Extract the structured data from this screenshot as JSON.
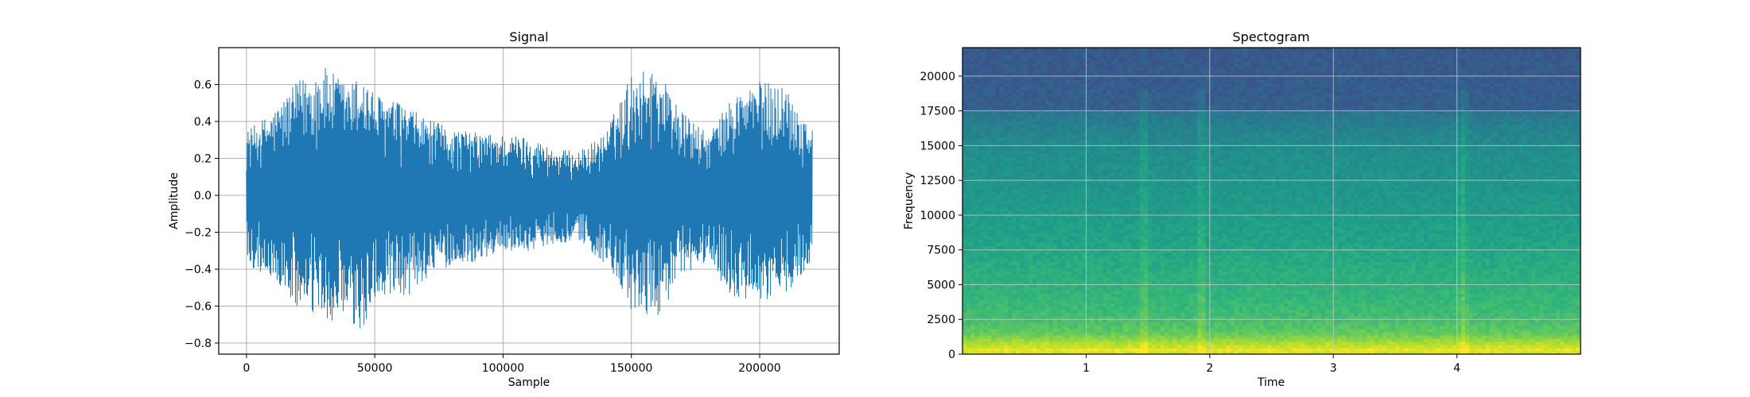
{
  "chart_data": [
    {
      "type": "line",
      "title": "Signal",
      "xlabel": "Sample",
      "ylabel": "Amplitude",
      "xlim": [
        -10800,
        231000
      ],
      "ylim": [
        -0.86,
        0.8
      ],
      "grid": true,
      "series_color": "#1f77b4",
      "xticks": [
        {
          "value": 0,
          "label": "0"
        },
        {
          "value": 50000,
          "label": "50000"
        },
        {
          "value": 100000,
          "label": "100000"
        },
        {
          "value": 150000,
          "label": "150000"
        },
        {
          "value": 200000,
          "label": "200000"
        }
      ],
      "yticks": [
        {
          "value": -0.8,
          "label": "−0.8"
        },
        {
          "value": -0.6,
          "label": "−0.6"
        },
        {
          "value": -0.4,
          "label": "−0.4"
        },
        {
          "value": -0.2,
          "label": "−0.2"
        },
        {
          "value": 0.0,
          "label": "0.0"
        },
        {
          "value": 0.2,
          "label": "0.2"
        },
        {
          "value": 0.4,
          "label": "0.4"
        },
        {
          "value": 0.6,
          "label": "0.6"
        }
      ],
      "samples": 220500,
      "envelope": {
        "x": [
          0,
          10000,
          20000,
          30000,
          40000,
          45000,
          50000,
          60000,
          70000,
          80000,
          90000,
          100000,
          110000,
          120000,
          130000,
          140000,
          150000,
          160000,
          170000,
          180000,
          190000,
          200000,
          210000,
          220500
        ],
        "upper": [
          0.35,
          0.45,
          0.62,
          0.7,
          0.6,
          0.66,
          0.55,
          0.5,
          0.42,
          0.36,
          0.34,
          0.33,
          0.32,
          0.25,
          0.24,
          0.34,
          0.66,
          0.7,
          0.45,
          0.33,
          0.55,
          0.62,
          0.6,
          0.36
        ],
        "lower": [
          -0.38,
          -0.45,
          -0.62,
          -0.68,
          -0.7,
          -0.78,
          -0.55,
          -0.6,
          -0.45,
          -0.38,
          -0.36,
          -0.3,
          -0.3,
          -0.26,
          -0.25,
          -0.38,
          -0.64,
          -0.66,
          -0.45,
          -0.35,
          -0.58,
          -0.58,
          -0.54,
          -0.35
        ]
      }
    },
    {
      "type": "heatmap",
      "title": "Spectogram",
      "xlabel": "Time",
      "ylabel": "Frequency",
      "xlim": [
        0,
        5.0
      ],
      "ylim": [
        0,
        22050
      ],
      "grid": true,
      "colormap": "viridis",
      "xticks": [
        {
          "value": 1,
          "label": "1"
        },
        {
          "value": 2,
          "label": "2"
        },
        {
          "value": 3,
          "label": "3"
        },
        {
          "value": 4,
          "label": "4"
        }
      ],
      "yticks": [
        {
          "value": 0,
          "label": "0"
        },
        {
          "value": 2500,
          "label": "2500"
        },
        {
          "value": 5000,
          "label": "5000"
        },
        {
          "value": 7500,
          "label": "7500"
        },
        {
          "value": 10000,
          "label": "10000"
        },
        {
          "value": 12500,
          "label": "12500"
        },
        {
          "value": 15000,
          "label": "15000"
        },
        {
          "value": 17500,
          "label": "17500"
        },
        {
          "value": 20000,
          "label": "20000"
        }
      ],
      "frequency_profile": {
        "freq": [
          0,
          300,
          800,
          1500,
          2500,
          4000,
          6000,
          8000,
          10000,
          12000,
          14000,
          15500,
          16500,
          17400,
          17600,
          19000,
          22050
        ],
        "level": [
          0.93,
          0.97,
          0.88,
          0.76,
          0.7,
          0.66,
          0.62,
          0.58,
          0.55,
          0.52,
          0.5,
          0.47,
          0.43,
          0.4,
          0.3,
          0.29,
          0.28
        ]
      },
      "broadband_events_time": [
        1.47,
        1.93,
        4.05
      ]
    }
  ]
}
